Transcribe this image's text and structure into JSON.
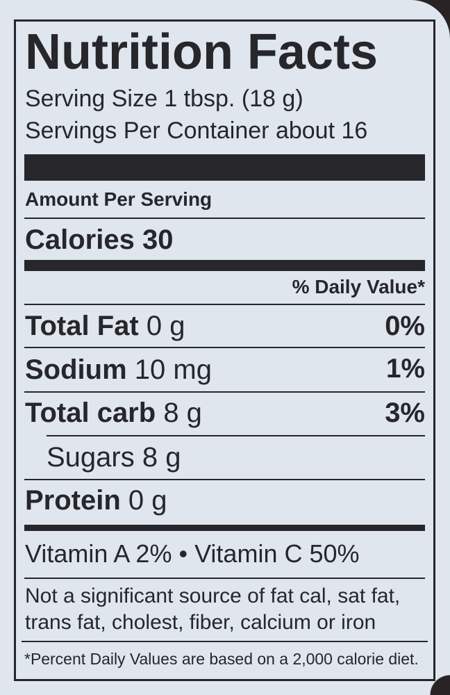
{
  "label": {
    "title": "Nutrition Facts",
    "serving_size": "Serving Size 1 tbsp. (18 g)",
    "servings_per_container": "Servings Per Container about 16",
    "amount_per_serving": "Amount Per Serving",
    "calories": "Calories 30",
    "daily_value_header": "% Daily Value*",
    "nutrients": [
      {
        "name": "Total Fat",
        "amount": "0 g",
        "dv": "0%"
      },
      {
        "name": "Sodium",
        "amount": "10 mg",
        "dv": "1%"
      },
      {
        "name": "Total carb",
        "amount": "8 g",
        "dv": "3%"
      },
      {
        "name": "Sugars 8 g",
        "amount": "",
        "dv": ""
      },
      {
        "name": "Protein",
        "amount": "0 g",
        "dv": ""
      }
    ],
    "vitamins": "Vitamin A 2% • Vitamin C 50%",
    "not_significant_line1": "Not a significant source of fat cal, sat fat,",
    "not_significant_line2": "trans fat, cholest, fiber, calcium or iron",
    "footnote": "*Percent Daily Values are based on a 2,000 calorie diet."
  },
  "colors": {
    "background": "#dfe6ed",
    "ink": "#26262b"
  }
}
